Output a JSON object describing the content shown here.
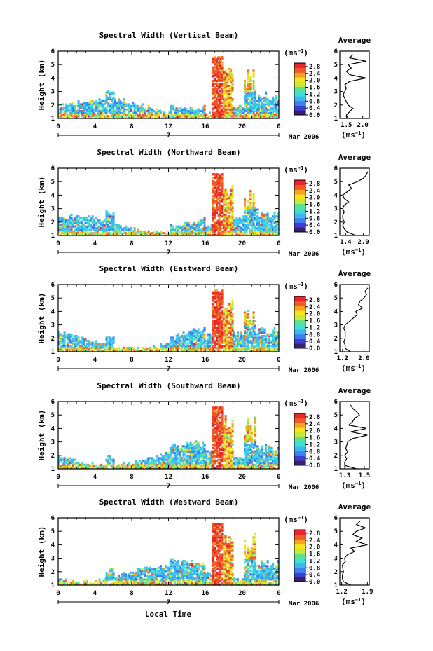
{
  "chart_data": {
    "type": "heatmap",
    "common": {
      "x_ticks": [
        "0",
        "4",
        "8",
        "12",
        "16",
        "20",
        "0"
      ],
      "x_range": [
        0,
        24
      ],
      "date_center_label": "7",
      "date_label": "Mar 2006",
      "ylabel": "Height (km)",
      "y_ticks": [
        "1",
        "2",
        "3",
        "4",
        "5",
        "6"
      ],
      "y_range": [
        1,
        6
      ],
      "colorbar_unit": "(ms",
      "colorbar_unit_exp": "−1",
      "colorbar_ticks": [
        "0.0",
        "0.4",
        "0.8",
        "1.2",
        "1.6",
        "2.0",
        "2.4",
        "2.8"
      ],
      "colorbar_range": [
        0,
        3.0
      ],
      "profile_title": "Average",
      "profile_unit": "(ms",
      "profile_unit_exp": "−1",
      "xlabel": "Local Time",
      "colormap": [
        "#3a1f6e",
        "#3a3fcf",
        "#3f7fef",
        "#3fb8f0",
        "#3fe0d8",
        "#5fe08f",
        "#c8e83a",
        "#f4e41e",
        "#f6a224",
        "#ef5a28",
        "#e8262e"
      ]
    },
    "panels": [
      {
        "title": "Spectral Width (Vertical Beam)",
        "profile_ticks": [
          "1.5",
          "2.0"
        ],
        "profile_xrange": [
          1.3,
          2.2
        ],
        "profile_tick_values": [
          1.5,
          2.0
        ],
        "profile": [
          [
            1.0,
            1.55
          ],
          [
            1.25,
            1.5
          ],
          [
            1.5,
            1.6
          ],
          [
            1.75,
            1.7
          ],
          [
            2.0,
            1.55
          ],
          [
            2.25,
            1.5
          ],
          [
            2.5,
            1.45
          ],
          [
            2.75,
            1.4
          ],
          [
            3.0,
            1.45
          ],
          [
            3.25,
            1.5
          ],
          [
            3.5,
            1.45
          ],
          [
            3.75,
            1.6
          ],
          [
            4.0,
            2.1
          ],
          [
            4.25,
            1.6
          ],
          [
            4.5,
            1.5
          ],
          [
            4.75,
            1.65
          ],
          [
            5.0,
            1.55
          ],
          [
            5.25,
            2.1
          ],
          [
            5.5,
            1.6
          ],
          [
            5.75,
            1.7
          ]
        ]
      },
      {
        "title": "Spectral Width (Northward Beam)",
        "profile_ticks": [
          "1.4",
          "2.0"
        ],
        "profile_xrange": [
          1.2,
          2.2
        ],
        "profile_tick_values": [
          1.4,
          2.0
        ],
        "profile": [
          [
            1.0,
            1.75
          ],
          [
            1.25,
            1.45
          ],
          [
            1.5,
            1.35
          ],
          [
            1.75,
            1.3
          ],
          [
            2.0,
            1.35
          ],
          [
            2.25,
            1.3
          ],
          [
            2.5,
            1.3
          ],
          [
            2.75,
            1.35
          ],
          [
            3.0,
            1.3
          ],
          [
            3.25,
            1.35
          ],
          [
            3.5,
            1.5
          ],
          [
            3.75,
            1.35
          ],
          [
            4.0,
            1.3
          ],
          [
            4.25,
            1.45
          ],
          [
            4.5,
            1.6
          ],
          [
            4.75,
            1.5
          ],
          [
            5.0,
            1.8
          ],
          [
            5.25,
            2.0
          ],
          [
            5.5,
            2.1
          ],
          [
            5.75,
            2.15
          ]
        ]
      },
      {
        "title": "Spectral Width (Eastward Beam)",
        "profile_ticks": [
          "1.2",
          "2.0"
        ],
        "profile_xrange": [
          1.1,
          2.2
        ],
        "profile_tick_values": [
          1.2,
          2.0
        ],
        "profile": [
          [
            1.0,
            1.5
          ],
          [
            1.25,
            1.3
          ],
          [
            1.5,
            1.3
          ],
          [
            1.75,
            1.25
          ],
          [
            2.0,
            1.3
          ],
          [
            2.25,
            1.3
          ],
          [
            2.5,
            1.3
          ],
          [
            2.75,
            1.25
          ],
          [
            3.0,
            1.3
          ],
          [
            3.25,
            1.45
          ],
          [
            3.5,
            1.6
          ],
          [
            3.75,
            1.75
          ],
          [
            4.0,
            1.7
          ],
          [
            4.25,
            1.95
          ],
          [
            4.5,
            1.8
          ],
          [
            4.75,
            1.85
          ],
          [
            5.0,
            2.0
          ],
          [
            5.25,
            2.1
          ],
          [
            5.5,
            2.05
          ],
          [
            5.75,
            2.15
          ]
        ]
      },
      {
        "title": "Spectral Width (Southward Beam)",
        "profile_ticks": [
          "1.3",
          "1.5"
        ],
        "profile_xrange": [
          1.25,
          1.55
        ],
        "profile_tick_values": [
          1.3,
          1.5
        ],
        "profile": [
          [
            1.0,
            1.42
          ],
          [
            1.25,
            1.3
          ],
          [
            1.5,
            1.3
          ],
          [
            1.75,
            1.32
          ],
          [
            2.0,
            1.3
          ],
          [
            2.25,
            1.33
          ],
          [
            2.5,
            1.31
          ],
          [
            2.75,
            1.32
          ],
          [
            3.0,
            1.33
          ],
          [
            3.25,
            1.38
          ],
          [
            3.5,
            1.53
          ],
          [
            3.75,
            1.36
          ],
          [
            4.0,
            1.52
          ],
          [
            4.25,
            1.34
          ],
          [
            4.5,
            1.38
          ],
          [
            4.75,
            1.4
          ],
          [
            5.0,
            1.45
          ],
          [
            5.25,
            1.42
          ],
          [
            5.5,
            1.38
          ],
          [
            5.75,
            1.36
          ]
        ]
      },
      {
        "title": "Spectral Width (Westward Beam)",
        "profile_ticks": [
          "1.2",
          "1.9"
        ],
        "profile_xrange": [
          1.15,
          1.95
        ],
        "profile_tick_values": [
          1.2,
          1.9
        ],
        "profile": [
          [
            1.0,
            1.45
          ],
          [
            1.25,
            1.25
          ],
          [
            1.5,
            1.22
          ],
          [
            1.75,
            1.22
          ],
          [
            2.0,
            1.25
          ],
          [
            2.25,
            1.23
          ],
          [
            2.5,
            1.22
          ],
          [
            2.75,
            1.3
          ],
          [
            3.0,
            1.28
          ],
          [
            3.25,
            1.35
          ],
          [
            3.5,
            1.55
          ],
          [
            3.75,
            1.45
          ],
          [
            4.0,
            1.9
          ],
          [
            4.25,
            1.6
          ],
          [
            4.5,
            1.75
          ],
          [
            4.75,
            1.5
          ],
          [
            5.0,
            1.6
          ],
          [
            5.25,
            1.85
          ],
          [
            5.5,
            1.6
          ],
          [
            5.75,
            1.7
          ]
        ]
      }
    ]
  }
}
